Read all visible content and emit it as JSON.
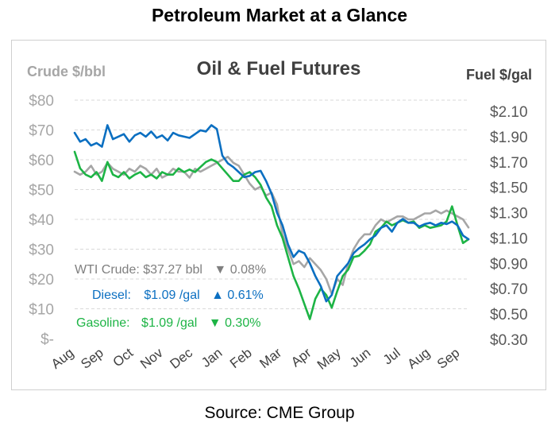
{
  "page": {
    "title": "Petroleum Market at a Glance",
    "source": "Source: CME Group"
  },
  "chart_data": {
    "type": "line",
    "title": "Oil & Fuel Futures",
    "left_axis_label": "Crude $/bbl",
    "right_axis_label": "Fuel $/gal",
    "left_ticks": [
      "$80",
      "$70",
      "$60",
      "$50",
      "$40",
      "$30",
      "$20",
      "$10",
      "$-"
    ],
    "left_tick_values": [
      80,
      70,
      60,
      50,
      40,
      30,
      20,
      10,
      0
    ],
    "right_ticks": [
      "$2.10",
      "$1.90",
      "$1.70",
      "$1.50",
      "$1.30",
      "$1.10",
      "$0.90",
      "$0.70",
      "$0.50",
      "$0.30"
    ],
    "right_tick_values": [
      2.1,
      1.9,
      1.7,
      1.5,
      1.3,
      1.1,
      0.9,
      0.7,
      0.5,
      0.3
    ],
    "ylim_left": [
      0,
      80
    ],
    "ylim_right": [
      0.3,
      2.1
    ],
    "x_labels": [
      "Aug",
      "Sep",
      "Oct",
      "Nov",
      "Dec",
      "Jan",
      "Feb",
      "Mar",
      "Apr",
      "May",
      "Jun",
      "Jul",
      "Aug",
      "Sep"
    ],
    "grid": "horizontal dashed",
    "series": [
      {
        "name": "WTI Crude",
        "axis": "left",
        "color": "#a6a6a6",
        "label": "WTI Crude: $37.27 bbl",
        "change_arrow": "▼",
        "change": "0.08%",
        "values": [
          56,
          55,
          56,
          58,
          55,
          56,
          59,
          57,
          56,
          55,
          57,
          56,
          58,
          57,
          55,
          57,
          54,
          55,
          57,
          56,
          56,
          54,
          57,
          56,
          57,
          58,
          59,
          60,
          61,
          59,
          58,
          55,
          52,
          50,
          51,
          48,
          49,
          45,
          35,
          30,
          25,
          26,
          24,
          27,
          25,
          23,
          20,
          15,
          20,
          18,
          25,
          30,
          33,
          35,
          35,
          38,
          40,
          39,
          40,
          41,
          41,
          40,
          40,
          41,
          42,
          42,
          43,
          42,
          43,
          42,
          41,
          40,
          37.27
        ]
      },
      {
        "name": "Diesel",
        "axis": "right",
        "color": "#0b6fc1",
        "label": "Diesel:",
        "price": "$1.09 /gal",
        "change_arrow": "▲",
        "change": "0.61%",
        "values": [
          1.93,
          1.86,
          1.88,
          1.83,
          1.85,
          1.82,
          1.99,
          1.88,
          1.9,
          1.92,
          1.86,
          1.91,
          1.93,
          1.9,
          1.94,
          1.89,
          1.91,
          1.87,
          1.93,
          1.91,
          1.9,
          1.89,
          1.92,
          1.95,
          1.94,
          1.99,
          1.96,
          1.75,
          1.69,
          1.66,
          1.62,
          1.58,
          1.59,
          1.62,
          1.63,
          1.55,
          1.45,
          1.3,
          1.2,
          1.05,
          0.95,
          1.0,
          0.98,
          0.9,
          0.8,
          0.72,
          0.6,
          0.65,
          0.8,
          0.85,
          0.9,
          0.98,
          1.02,
          1.05,
          1.09,
          1.12,
          1.18,
          1.2,
          1.15,
          1.22,
          1.25,
          1.22,
          1.22,
          1.19,
          1.21,
          1.22,
          1.2,
          1.22,
          1.21,
          1.23,
          1.2,
          1.12,
          1.09
        ]
      },
      {
        "name": "Gasoline",
        "axis": "right",
        "color": "#1db445",
        "label": "Gasoline:",
        "price": "$1.09 /gal",
        "change_arrow": "▼",
        "change": "0.30%",
        "values": [
          1.78,
          1.65,
          1.6,
          1.58,
          1.62,
          1.55,
          1.7,
          1.6,
          1.58,
          1.62,
          1.57,
          1.6,
          1.62,
          1.58,
          1.6,
          1.57,
          1.62,
          1.6,
          1.6,
          1.65,
          1.62,
          1.64,
          1.62,
          1.66,
          1.7,
          1.72,
          1.7,
          1.65,
          1.6,
          1.55,
          1.55,
          1.6,
          1.62,
          1.58,
          1.52,
          1.42,
          1.35,
          1.2,
          1.1,
          0.95,
          0.8,
          0.7,
          0.58,
          0.46,
          0.62,
          0.7,
          0.65,
          0.55,
          0.68,
          0.8,
          0.85,
          0.95,
          0.96,
          1.0,
          1.05,
          1.15,
          1.18,
          1.23,
          1.2,
          1.22,
          1.24,
          1.22,
          1.23,
          1.18,
          1.2,
          1.18,
          1.19,
          1.2,
          1.23,
          1.35,
          1.2,
          1.06,
          1.09
        ]
      }
    ]
  }
}
